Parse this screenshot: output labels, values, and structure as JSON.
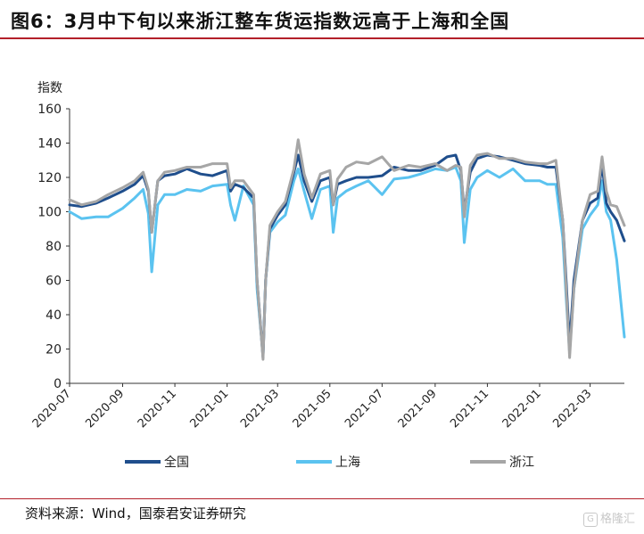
{
  "header": {
    "title": "图6：3月中下旬以来浙江整车货运指数远高于上海和全国"
  },
  "footer": {
    "source": "资料来源：Wind，国泰君安证券研究",
    "watermark": "格隆汇"
  },
  "colors": {
    "全国": "#1f4e8c",
    "上海": "#5bc3f0",
    "浙江": "#a6a6a6",
    "rule": "#b3202a"
  },
  "chart_data": {
    "type": "line",
    "title": "",
    "ylabel": "指数",
    "xlabel": "",
    "ylim": [
      0,
      160
    ],
    "yticks": [
      0,
      20,
      40,
      60,
      80,
      100,
      120,
      140,
      160
    ],
    "xticks": [
      "2020-07",
      "2020-09",
      "2020-11",
      "2021-01",
      "2021-03",
      "2021-05",
      "2021-07",
      "2021-09",
      "2021-11",
      "2022-01",
      "2022-03"
    ],
    "grid": false,
    "legend": "bottom",
    "x": [
      "2020-07-01",
      "2020-07-15",
      "2020-08-01",
      "2020-08-15",
      "2020-09-01",
      "2020-09-15",
      "2020-09-25",
      "2020-10-01",
      "2020-10-05",
      "2020-10-12",
      "2020-10-20",
      "2020-11-01",
      "2020-11-15",
      "2020-12-01",
      "2020-12-15",
      "2021-01-01",
      "2021-01-05",
      "2021-01-10",
      "2021-01-20",
      "2021-02-01",
      "2021-02-05",
      "2021-02-12",
      "2021-02-15",
      "2021-02-20",
      "2021-03-01",
      "2021-03-10",
      "2021-03-20",
      "2021-03-25",
      "2021-04-01",
      "2021-04-10",
      "2021-04-20",
      "2021-05-01",
      "2021-05-05",
      "2021-05-10",
      "2021-05-20",
      "2021-06-01",
      "2021-06-15",
      "2021-07-01",
      "2021-07-15",
      "2021-08-01",
      "2021-08-15",
      "2021-09-01",
      "2021-09-15",
      "2021-09-25",
      "2021-10-01",
      "2021-10-05",
      "2021-10-12",
      "2021-10-20",
      "2021-11-01",
      "2021-11-15",
      "2021-12-01",
      "2021-12-15",
      "2022-01-01",
      "2022-01-10",
      "2022-01-20",
      "2022-01-28",
      "2022-02-01",
      "2022-02-05",
      "2022-02-10",
      "2022-02-20",
      "2022-03-01",
      "2022-03-10",
      "2022-03-15",
      "2022-03-20",
      "2022-03-25",
      "2022-04-01",
      "2022-04-10"
    ],
    "series": [
      {
        "name": "全国",
        "values": [
          104,
          103,
          105,
          108,
          112,
          116,
          121,
          112,
          88,
          118,
          121,
          122,
          125,
          122,
          121,
          124,
          112,
          116,
          114,
          108,
          60,
          15,
          60,
          90,
          98,
          104,
          123,
          133,
          118,
          106,
          118,
          120,
          104,
          116,
          118,
          120,
          120,
          121,
          126,
          124,
          124,
          127,
          132,
          133,
          124,
          100,
          123,
          131,
          133,
          132,
          130,
          128,
          127,
          126,
          126,
          95,
          60,
          22,
          60,
          95,
          105,
          108,
          128,
          105,
          100,
          95,
          83
        ]
      },
      {
        "name": "上海",
        "values": [
          100,
          96,
          97,
          97,
          102,
          108,
          113,
          99,
          65,
          104,
          110,
          110,
          113,
          112,
          115,
          116,
          104,
          95,
          115,
          104,
          55,
          16,
          60,
          88,
          94,
          98,
          118,
          125,
          112,
          96,
          113,
          115,
          88,
          108,
          112,
          115,
          118,
          110,
          119,
          120,
          122,
          125,
          124,
          126,
          118,
          82,
          113,
          120,
          124,
          120,
          125,
          118,
          118,
          116,
          116,
          85,
          50,
          18,
          55,
          90,
          98,
          104,
          118,
          100,
          95,
          72,
          27
        ]
      },
      {
        "name": "浙江",
        "values": [
          107,
          104,
          106,
          110,
          114,
          118,
          123,
          113,
          88,
          118,
          123,
          124,
          126,
          126,
          128,
          128,
          114,
          118,
          118,
          110,
          60,
          14,
          60,
          92,
          100,
          106,
          125,
          142,
          122,
          108,
          122,
          124,
          104,
          119,
          126,
          129,
          128,
          132,
          124,
          127,
          126,
          128,
          124,
          127,
          126,
          97,
          127,
          133,
          134,
          131,
          131,
          129,
          128,
          128,
          130,
          95,
          55,
          15,
          55,
          95,
          110,
          112,
          132,
          112,
          104,
          103,
          92
        ]
      }
    ]
  }
}
